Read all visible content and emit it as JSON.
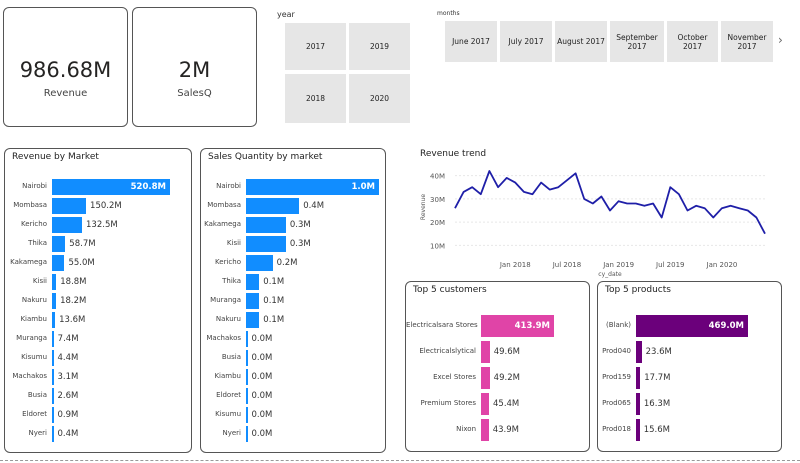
{
  "kpis": [
    {
      "value": "986.68M",
      "label": "Revenue"
    },
    {
      "value": "2M",
      "label": "SalesQ"
    }
  ],
  "year_slicer": {
    "title": "year",
    "options": [
      "2017",
      "2019",
      "2018",
      "2020"
    ]
  },
  "month_slicer": {
    "title": "months",
    "options": [
      "June 2017",
      "July 2017",
      "August 2017",
      "September 2017",
      "October 2017",
      "November 2017"
    ]
  },
  "colors": {
    "blue": "#118dff",
    "pink": "#e044a7",
    "purple": "#6b007b",
    "line": "#1f1fa8"
  },
  "icons": {
    "next": "chevron-right-icon"
  },
  "chart_data": [
    {
      "type": "bar",
      "title": "Revenue by Market",
      "categories": [
        "Nairobi",
        "Mombasa",
        "Kericho",
        "Thika",
        "Kakamega",
        "Kisii",
        "Nakuru",
        "Kiambu",
        "Muranga",
        "Kisumu",
        "Machakos",
        "Busia",
        "Eldoret",
        "Nyeri"
      ],
      "values": [
        520.8,
        150.2,
        132.5,
        58.7,
        55.0,
        18.8,
        18.2,
        13.6,
        7.4,
        4.4,
        3.1,
        2.6,
        0.9,
        0.4
      ],
      "labels": [
        "520.8M",
        "150.2M",
        "132.5M",
        "58.7M",
        "55.0M",
        "18.8M",
        "18.2M",
        "13.6M",
        "7.4M",
        "4.4M",
        "3.1M",
        "2.6M",
        "0.9M",
        "0.4M"
      ]
    },
    {
      "type": "bar",
      "title": "Sales Quantity by market",
      "categories": [
        "Nairobi",
        "Mombasa",
        "Kakamega",
        "Kisii",
        "Kericho",
        "Thika",
        "Muranga",
        "Nakuru",
        "Machakos",
        "Busia",
        "Kiambu",
        "Eldoret",
        "Kisumu",
        "Nyeri"
      ],
      "values": [
        1.0,
        0.4,
        0.3,
        0.3,
        0.2,
        0.1,
        0.1,
        0.1,
        0.0,
        0.0,
        0.0,
        0.0,
        0.0,
        0.0
      ],
      "labels": [
        "1.0M",
        "0.4M",
        "0.3M",
        "0.3M",
        "0.2M",
        "0.1M",
        "0.1M",
        "0.1M",
        "0.0M",
        "0.0M",
        "0.0M",
        "0.0M",
        "0.0M",
        "0.0M"
      ]
    },
    {
      "type": "line",
      "title": "Revenue trend",
      "xlabel": "cy_date",
      "ylabel": "Revenue",
      "x": [
        "2017-06",
        "2017-07",
        "2017-08",
        "2017-09",
        "2017-10",
        "2017-11",
        "2017-12",
        "2018-01",
        "2018-02",
        "2018-03",
        "2018-04",
        "2018-05",
        "2018-06",
        "2018-07",
        "2018-08",
        "2018-09",
        "2018-10",
        "2018-11",
        "2018-12",
        "2019-01",
        "2019-02",
        "2019-03",
        "2019-04",
        "2019-05",
        "2019-06",
        "2019-07",
        "2019-08",
        "2019-09",
        "2019-10",
        "2019-11",
        "2019-12",
        "2020-01",
        "2020-02",
        "2020-03",
        "2020-04",
        "2020-05",
        "2020-06"
      ],
      "values": [
        26,
        33,
        35,
        32,
        42,
        35,
        39,
        37,
        33,
        32,
        37,
        34,
        35,
        38,
        41,
        30,
        28,
        31,
        25,
        29,
        28,
        28,
        27,
        28,
        22,
        35,
        32,
        25,
        27,
        26,
        22,
        26,
        27,
        26,
        25,
        22,
        15
      ],
      "yticks": [
        "10M",
        "20M",
        "30M",
        "40M"
      ],
      "ylim": [
        8,
        45
      ],
      "xticks": [
        "Jan 2018",
        "Jul 2018",
        "Jan 2019",
        "Jul 2019",
        "Jan 2020"
      ]
    },
    {
      "type": "bar",
      "title": "Top 5 customers",
      "categories": [
        "Electricalsara Stores",
        "Electricalslytical",
        "Excel Stores",
        "Premium Stores",
        "Nixon"
      ],
      "values": [
        413.9,
        49.6,
        49.2,
        45.4,
        43.9
      ],
      "labels": [
        "413.9M",
        "49.6M",
        "49.2M",
        "45.4M",
        "43.9M"
      ]
    },
    {
      "type": "bar",
      "title": "Top 5 products",
      "categories": [
        "(Blank)",
        "Prod040",
        "Prod159",
        "Prod065",
        "Prod018"
      ],
      "values": [
        469.0,
        23.6,
        17.7,
        16.3,
        15.6
      ],
      "labels": [
        "469.0M",
        "23.6M",
        "17.7M",
        "16.3M",
        "15.6M"
      ]
    }
  ]
}
